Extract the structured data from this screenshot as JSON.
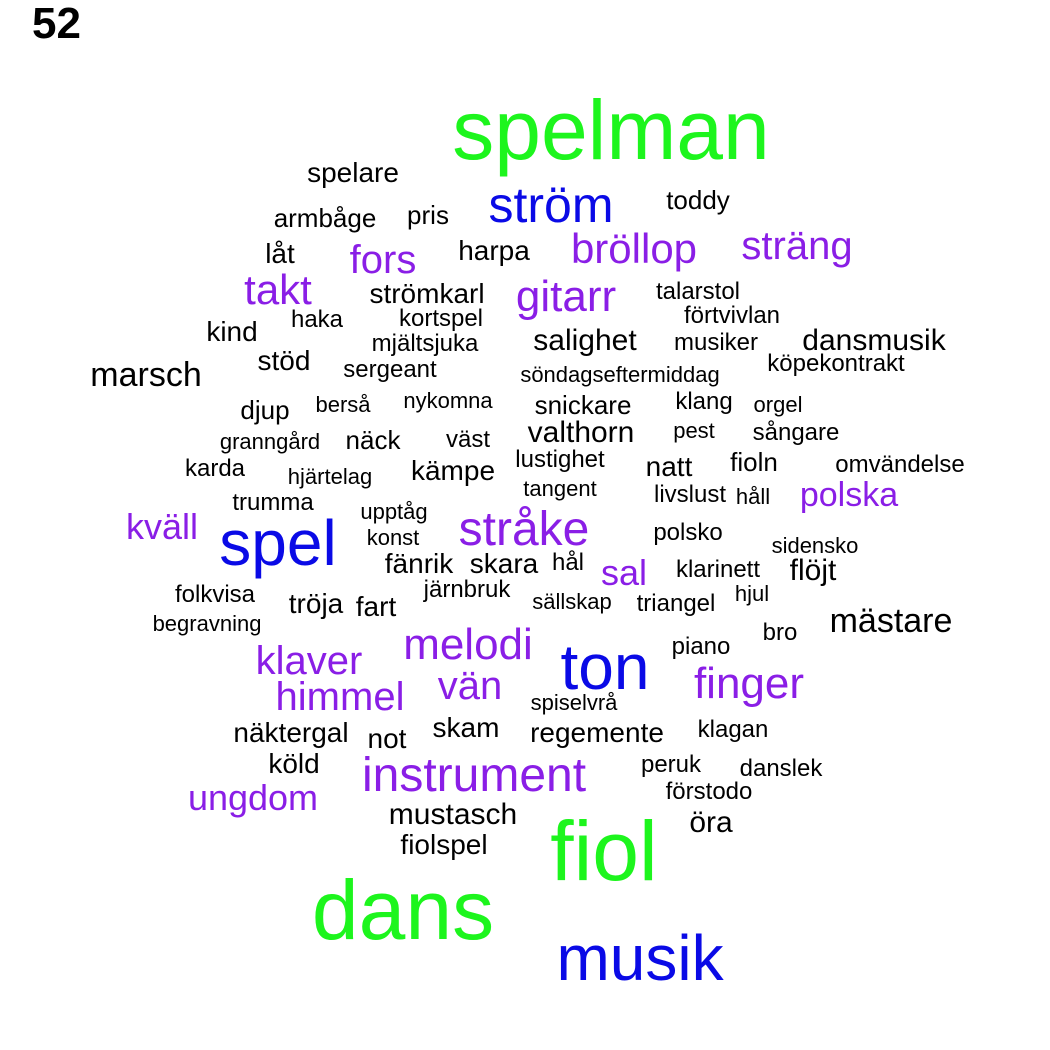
{
  "page_number": "52",
  "colors": {
    "green": "#1df51d",
    "blue": "#0a0ae6",
    "purple": "#8a1ee6",
    "black": "#000000"
  },
  "words": [
    {
      "text": "spelman",
      "color": "green"
    },
    {
      "text": "fiol",
      "color": "green"
    },
    {
      "text": "dans",
      "color": "green"
    },
    {
      "text": "musik",
      "color": "blue"
    },
    {
      "text": "ton",
      "color": "blue"
    },
    {
      "text": "spel",
      "color": "blue"
    },
    {
      "text": "ström",
      "color": "blue"
    },
    {
      "text": "instrument",
      "color": "purple"
    },
    {
      "text": "stråke",
      "color": "purple"
    },
    {
      "text": "melodi",
      "color": "purple"
    },
    {
      "text": "finger",
      "color": "purple"
    },
    {
      "text": "klaver",
      "color": "purple"
    },
    {
      "text": "himmel",
      "color": "purple"
    },
    {
      "text": "vän",
      "color": "purple"
    },
    {
      "text": "ungdom",
      "color": "purple"
    },
    {
      "text": "gitarr",
      "color": "purple"
    },
    {
      "text": "bröllop",
      "color": "purple"
    },
    {
      "text": "sträng",
      "color": "purple"
    },
    {
      "text": "takt",
      "color": "purple"
    },
    {
      "text": "fors",
      "color": "purple"
    },
    {
      "text": "kväll",
      "color": "purple"
    },
    {
      "text": "sal",
      "color": "purple"
    },
    {
      "text": "polska",
      "color": "purple"
    },
    {
      "text": "mästare",
      "color": "black"
    },
    {
      "text": "marsch",
      "color": "black"
    },
    {
      "text": "mustasch",
      "color": "black"
    },
    {
      "text": "öra",
      "color": "black"
    },
    {
      "text": "valthorn",
      "color": "black"
    },
    {
      "text": "flöjt",
      "color": "black"
    },
    {
      "text": "dansmusik",
      "color": "black"
    },
    {
      "text": "salighet",
      "color": "black"
    },
    {
      "text": "fiolspel",
      "color": "black"
    },
    {
      "text": "regemente",
      "color": "black"
    },
    {
      "text": "skam",
      "color": "black"
    },
    {
      "text": "not",
      "color": "black"
    },
    {
      "text": "näktergal",
      "color": "black"
    },
    {
      "text": "köld",
      "color": "black"
    },
    {
      "text": "fart",
      "color": "black"
    },
    {
      "text": "tröja",
      "color": "black"
    },
    {
      "text": "fänrik",
      "color": "black"
    },
    {
      "text": "skara",
      "color": "black"
    },
    {
      "text": "natt",
      "color": "black"
    },
    {
      "text": "kämpe",
      "color": "black"
    },
    {
      "text": "kind",
      "color": "black"
    },
    {
      "text": "stöd",
      "color": "black"
    },
    {
      "text": "låt",
      "color": "black"
    },
    {
      "text": "harpa",
      "color": "black"
    },
    {
      "text": "strömkarl",
      "color": "black"
    },
    {
      "text": "spelare",
      "color": "black"
    },
    {
      "text": "pris",
      "color": "black"
    },
    {
      "text": "armbåge",
      "color": "black"
    },
    {
      "text": "toddy",
      "color": "black"
    },
    {
      "text": "talarstol",
      "color": "black"
    },
    {
      "text": "förtvivlan",
      "color": "black"
    },
    {
      "text": "haka",
      "color": "black"
    },
    {
      "text": "kortspel",
      "color": "black"
    },
    {
      "text": "mjältsjuka",
      "color": "black"
    },
    {
      "text": "musiker",
      "color": "black"
    },
    {
      "text": "köpekontrakt",
      "color": "black"
    },
    {
      "text": "sergeant",
      "color": "black"
    },
    {
      "text": "söndagseftermiddag",
      "color": "black"
    },
    {
      "text": "djup",
      "color": "black"
    },
    {
      "text": "berså",
      "color": "black"
    },
    {
      "text": "nykomna",
      "color": "black"
    },
    {
      "text": "snickare",
      "color": "black"
    },
    {
      "text": "klang",
      "color": "black"
    },
    {
      "text": "orgel",
      "color": "black"
    },
    {
      "text": "granngård",
      "color": "black"
    },
    {
      "text": "näck",
      "color": "black"
    },
    {
      "text": "väst",
      "color": "black"
    },
    {
      "text": "pest",
      "color": "black"
    },
    {
      "text": "sångare",
      "color": "black"
    },
    {
      "text": "lustighet",
      "color": "black"
    },
    {
      "text": "fioln",
      "color": "black"
    },
    {
      "text": "karda",
      "color": "black"
    },
    {
      "text": "hjärtelag",
      "color": "black"
    },
    {
      "text": "omvändelse",
      "color": "black"
    },
    {
      "text": "tangent",
      "color": "black"
    },
    {
      "text": "livslust",
      "color": "black"
    },
    {
      "text": "håll",
      "color": "black"
    },
    {
      "text": "trumma",
      "color": "black"
    },
    {
      "text": "upptåg",
      "color": "black"
    },
    {
      "text": "konst",
      "color": "black"
    },
    {
      "text": "polsko",
      "color": "black"
    },
    {
      "text": "sidensko",
      "color": "black"
    },
    {
      "text": "hål",
      "color": "black"
    },
    {
      "text": "klarinett",
      "color": "black"
    },
    {
      "text": "folkvisa",
      "color": "black"
    },
    {
      "text": "järnbruk",
      "color": "black"
    },
    {
      "text": "sällskap",
      "color": "black"
    },
    {
      "text": "triangel",
      "color": "black"
    },
    {
      "text": "hjul",
      "color": "black"
    },
    {
      "text": "begravning",
      "color": "black"
    },
    {
      "text": "bro",
      "color": "black"
    },
    {
      "text": "piano",
      "color": "black"
    },
    {
      "text": "spiselvrå",
      "color": "black"
    },
    {
      "text": "klagan",
      "color": "black"
    },
    {
      "text": "peruk",
      "color": "black"
    },
    {
      "text": "danslek",
      "color": "black"
    },
    {
      "text": "förstodo",
      "color": "black"
    }
  ]
}
